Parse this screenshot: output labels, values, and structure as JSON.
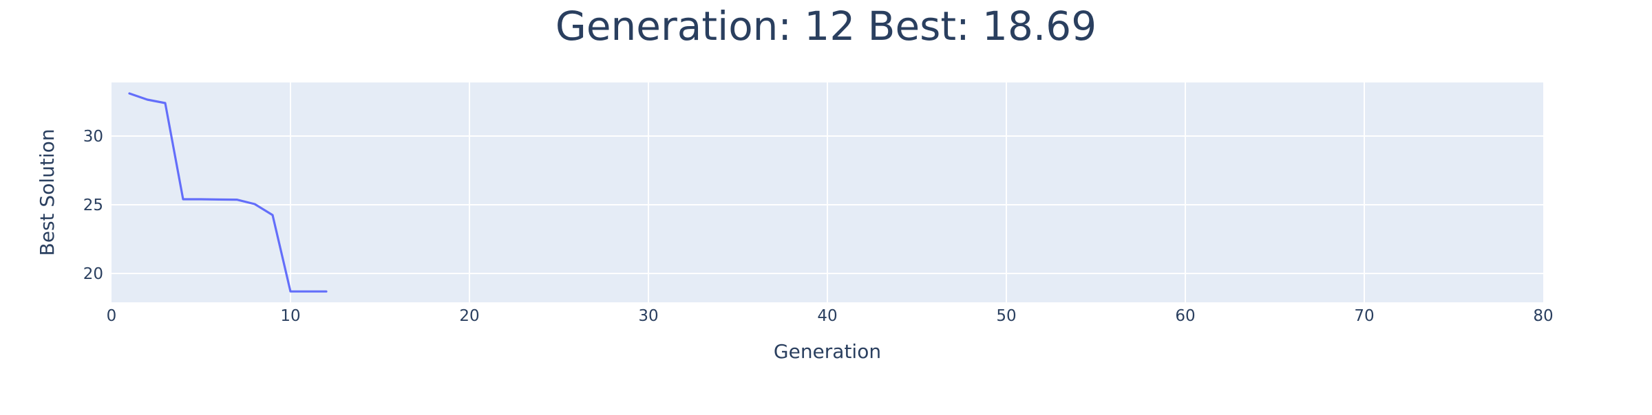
{
  "chart_data": {
    "type": "line",
    "title": "Generation: 12 Best: 18.69",
    "xlabel": "Generation",
    "ylabel": "Best Solution",
    "xlim": [
      0,
      80
    ],
    "ylim": [
      17.9,
      33.9
    ],
    "x_ticks": [
      0,
      10,
      20,
      30,
      40,
      50,
      60,
      70,
      80
    ],
    "y_ticks": [
      20,
      25,
      30
    ],
    "grid": true,
    "legend": "none",
    "colors": {
      "line": "#636efa",
      "plot_bg": "#e5ecf6",
      "grid": "#ffffff",
      "text": "#2a3f5f"
    },
    "series": [
      {
        "x": [
          1,
          2,
          3,
          4,
          5,
          6,
          7,
          8,
          9,
          10,
          11,
          12
        ],
        "values": [
          33.1,
          32.65,
          32.4,
          25.4,
          25.4,
          25.38,
          25.37,
          25.05,
          24.25,
          18.69,
          18.69,
          18.69
        ]
      }
    ]
  }
}
